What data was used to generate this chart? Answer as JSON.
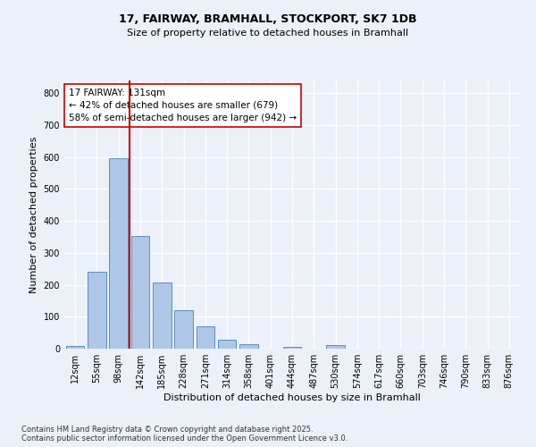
{
  "title1": "17, FAIRWAY, BRAMHALL, STOCKPORT, SK7 1DB",
  "title2": "Size of property relative to detached houses in Bramhall",
  "xlabel": "Distribution of detached houses by size in Bramhall",
  "ylabel": "Number of detached properties",
  "bar_labels": [
    "12sqm",
    "55sqm",
    "98sqm",
    "142sqm",
    "185sqm",
    "228sqm",
    "271sqm",
    "314sqm",
    "358sqm",
    "401sqm",
    "444sqm",
    "487sqm",
    "530sqm",
    "574sqm",
    "617sqm",
    "660sqm",
    "703sqm",
    "746sqm",
    "790sqm",
    "833sqm",
    "876sqm"
  ],
  "bar_values": [
    8,
    242,
    597,
    352,
    207,
    120,
    70,
    28,
    13,
    0,
    5,
    0,
    10,
    0,
    0,
    0,
    0,
    0,
    0,
    0,
    0
  ],
  "bar_color": "#aec6e8",
  "bar_edge_color": "#5a8fc0",
  "property_line_label": "17 FAIRWAY: 131sqm",
  "annotation_line1": "← 42% of detached houses are smaller (679)",
  "annotation_line2": "58% of semi-detached houses are larger (942) →",
  "vline_color": "#cc0000",
  "ylim": [
    0,
    840
  ],
  "yticks": [
    0,
    100,
    200,
    300,
    400,
    500,
    600,
    700,
    800
  ],
  "background_color": "#ecf1f9",
  "grid_color": "#ffffff",
  "footnote1": "Contains HM Land Registry data © Crown copyright and database right 2025.",
  "footnote2": "Contains public sector information licensed under the Open Government Licence v3.0."
}
